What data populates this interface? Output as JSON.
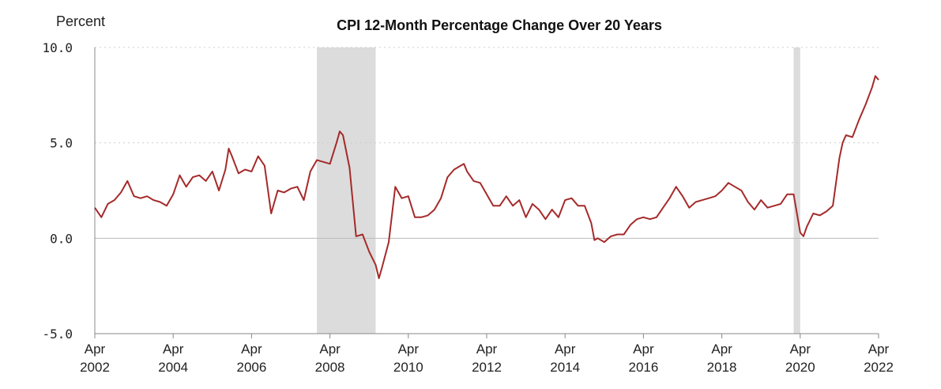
{
  "chart_data": {
    "type": "line",
    "title": "CPI 12-Month Percentage Change Over 20 Years",
    "ylabel": "Percent",
    "xlabel": "",
    "ylim": [
      -5,
      10
    ],
    "yticks": [
      "10.0",
      "5.0",
      "0.0",
      "-5.0"
    ],
    "xlim": [
      "2002-04",
      "2022-04"
    ],
    "xticks": [
      {
        "month": "Apr",
        "year": "2002"
      },
      {
        "month": "Apr",
        "year": "2004"
      },
      {
        "month": "Apr",
        "year": "2006"
      },
      {
        "month": "Apr",
        "year": "2008"
      },
      {
        "month": "Apr",
        "year": "2010"
      },
      {
        "month": "Apr",
        "year": "2012"
      },
      {
        "month": "Apr",
        "year": "2014"
      },
      {
        "month": "Apr",
        "year": "2016"
      },
      {
        "month": "Apr",
        "year": "2018"
      },
      {
        "month": "Apr",
        "year": "2020"
      },
      {
        "month": "Apr",
        "year": "2022"
      }
    ],
    "grid": "horizontal dotted",
    "recessions": [
      {
        "start": "2007-12",
        "end": "2009-06"
      },
      {
        "start": "2020-02",
        "end": "2020-04"
      }
    ],
    "series": [
      {
        "color": "#a52a2a",
        "points": [
          [
            "2002-04",
            1.6
          ],
          [
            "2002-06",
            1.1
          ],
          [
            "2002-08",
            1.8
          ],
          [
            "2002-10",
            2.0
          ],
          [
            "2002-12",
            2.4
          ],
          [
            "2003-02",
            3.0
          ],
          [
            "2003-04",
            2.2
          ],
          [
            "2003-06",
            2.1
          ],
          [
            "2003-08",
            2.2
          ],
          [
            "2003-10",
            2.0
          ],
          [
            "2003-12",
            1.9
          ],
          [
            "2004-02",
            1.7
          ],
          [
            "2004-04",
            2.3
          ],
          [
            "2004-06",
            3.3
          ],
          [
            "2004-08",
            2.7
          ],
          [
            "2004-10",
            3.2
          ],
          [
            "2004-12",
            3.3
          ],
          [
            "2005-02",
            3.0
          ],
          [
            "2005-04",
            3.5
          ],
          [
            "2005-06",
            2.5
          ],
          [
            "2005-08",
            3.6
          ],
          [
            "2005-09",
            4.7
          ],
          [
            "2005-10",
            4.3
          ],
          [
            "2005-12",
            3.4
          ],
          [
            "2006-02",
            3.6
          ],
          [
            "2006-04",
            3.5
          ],
          [
            "2006-06",
            4.3
          ],
          [
            "2006-08",
            3.8
          ],
          [
            "2006-10",
            1.3
          ],
          [
            "2006-12",
            2.5
          ],
          [
            "2007-02",
            2.4
          ],
          [
            "2007-04",
            2.6
          ],
          [
            "2007-06",
            2.7
          ],
          [
            "2007-08",
            2.0
          ],
          [
            "2007-10",
            3.5
          ],
          [
            "2007-12",
            4.1
          ],
          [
            "2008-02",
            4.0
          ],
          [
            "2008-04",
            3.9
          ],
          [
            "2008-06",
            5.0
          ],
          [
            "2008-07",
            5.6
          ],
          [
            "2008-08",
            5.4
          ],
          [
            "2008-10",
            3.7
          ],
          [
            "2008-12",
            0.1
          ],
          [
            "2009-02",
            0.2
          ],
          [
            "2009-04",
            -0.7
          ],
          [
            "2009-06",
            -1.4
          ],
          [
            "2009-07",
            -2.1
          ],
          [
            "2009-08",
            -1.5
          ],
          [
            "2009-10",
            -0.2
          ],
          [
            "2009-12",
            2.7
          ],
          [
            "2010-02",
            2.1
          ],
          [
            "2010-04",
            2.2
          ],
          [
            "2010-06",
            1.1
          ],
          [
            "2010-08",
            1.1
          ],
          [
            "2010-10",
            1.2
          ],
          [
            "2010-12",
            1.5
          ],
          [
            "2011-02",
            2.1
          ],
          [
            "2011-04",
            3.2
          ],
          [
            "2011-06",
            3.6
          ],
          [
            "2011-08",
            3.8
          ],
          [
            "2011-09",
            3.9
          ],
          [
            "2011-10",
            3.5
          ],
          [
            "2011-12",
            3.0
          ],
          [
            "2012-02",
            2.9
          ],
          [
            "2012-04",
            2.3
          ],
          [
            "2012-06",
            1.7
          ],
          [
            "2012-08",
            1.7
          ],
          [
            "2012-10",
            2.2
          ],
          [
            "2012-12",
            1.7
          ],
          [
            "2013-02",
            2.0
          ],
          [
            "2013-04",
            1.1
          ],
          [
            "2013-06",
            1.8
          ],
          [
            "2013-08",
            1.5
          ],
          [
            "2013-10",
            1.0
          ],
          [
            "2013-12",
            1.5
          ],
          [
            "2014-02",
            1.1
          ],
          [
            "2014-04",
            2.0
          ],
          [
            "2014-06",
            2.1
          ],
          [
            "2014-08",
            1.7
          ],
          [
            "2014-10",
            1.7
          ],
          [
            "2014-12",
            0.8
          ],
          [
            "2015-01",
            -0.1
          ],
          [
            "2015-02",
            0.0
          ],
          [
            "2015-04",
            -0.2
          ],
          [
            "2015-06",
            0.1
          ],
          [
            "2015-08",
            0.2
          ],
          [
            "2015-10",
            0.2
          ],
          [
            "2015-12",
            0.7
          ],
          [
            "2016-02",
            1.0
          ],
          [
            "2016-04",
            1.1
          ],
          [
            "2016-06",
            1.0
          ],
          [
            "2016-08",
            1.1
          ],
          [
            "2016-10",
            1.6
          ],
          [
            "2016-12",
            2.1
          ],
          [
            "2017-02",
            2.7
          ],
          [
            "2017-04",
            2.2
          ],
          [
            "2017-06",
            1.6
          ],
          [
            "2017-08",
            1.9
          ],
          [
            "2017-10",
            2.0
          ],
          [
            "2017-12",
            2.1
          ],
          [
            "2018-02",
            2.2
          ],
          [
            "2018-04",
            2.5
          ],
          [
            "2018-06",
            2.9
          ],
          [
            "2018-08",
            2.7
          ],
          [
            "2018-10",
            2.5
          ],
          [
            "2018-12",
            1.9
          ],
          [
            "2019-02",
            1.5
          ],
          [
            "2019-04",
            2.0
          ],
          [
            "2019-06",
            1.6
          ],
          [
            "2019-08",
            1.7
          ],
          [
            "2019-10",
            1.8
          ],
          [
            "2019-12",
            2.3
          ],
          [
            "2020-02",
            2.3
          ],
          [
            "2020-04",
            0.3
          ],
          [
            "2020-05",
            0.1
          ],
          [
            "2020-06",
            0.6
          ],
          [
            "2020-08",
            1.3
          ],
          [
            "2020-10",
            1.2
          ],
          [
            "2020-12",
            1.4
          ],
          [
            "2021-02",
            1.7
          ],
          [
            "2021-04",
            4.2
          ],
          [
            "2021-05",
            5.0
          ],
          [
            "2021-06",
            5.4
          ],
          [
            "2021-08",
            5.3
          ],
          [
            "2021-10",
            6.2
          ],
          [
            "2021-12",
            7.0
          ],
          [
            "2022-02",
            7.9
          ],
          [
            "2022-03",
            8.5
          ],
          [
            "2022-04",
            8.3
          ]
        ]
      }
    ]
  }
}
